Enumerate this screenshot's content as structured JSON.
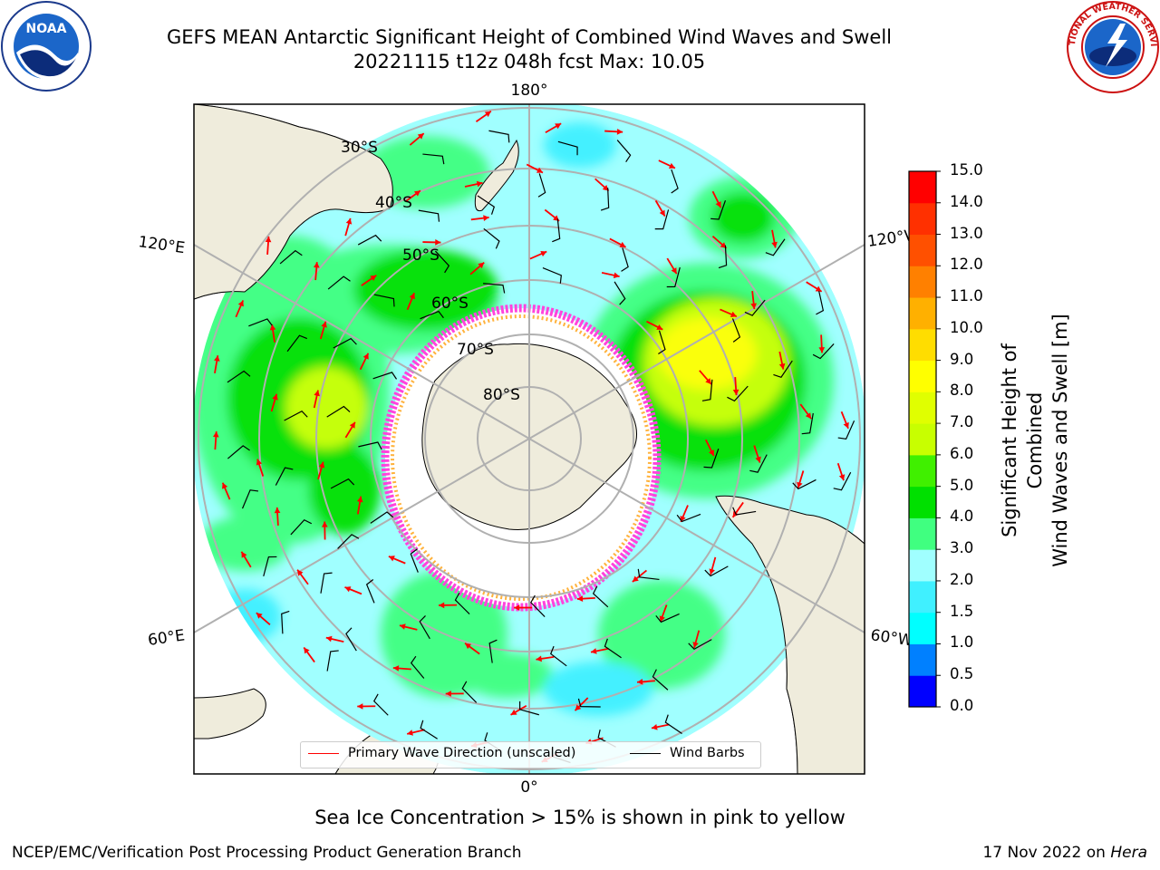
{
  "header": {
    "title_line1": "GEFS MEAN Antarctic Significant Height of Combined Wind Waves and Swell",
    "title_line2": "20221115 t12z 048h fcst   Max: 10.05"
  },
  "logos": {
    "left": {
      "icon": "noaa-logo-icon",
      "text": "NOAA"
    },
    "right": {
      "icon": "national-weather-service-logo-icon",
      "text": "NATIONAL WEATHER SERVICE"
    }
  },
  "map": {
    "projection": "south-polar-stereographic",
    "longitude_labels": [
      "180°",
      "120°E",
      "120°W",
      "60°E",
      "60°W",
      "0°"
    ],
    "latitude_labels": [
      "30°S",
      "40°S",
      "50°S",
      "60°S",
      "70°S",
      "80°S"
    ],
    "colors": {
      "land": "#efecdc",
      "ice_open": "#ffffff",
      "ice_edge_pink": "#ff44dd",
      "ice_edge_yellow": "#ffb23c",
      "wave_arrow": "#ff0000",
      "wind_barb": "#000000",
      "grid": "#b0b0b0"
    },
    "max_value": "10.05"
  },
  "legend": {
    "primary_wave_label": "Primary Wave Direction (unscaled)",
    "wind_barbs_label": "Wind Barbs"
  },
  "colorbar": {
    "title_line1": "Significant Height of Combined",
    "title_line2": "Wind Waves and Swell [m]",
    "ticks": [
      "0.0",
      "0.5",
      "1.0",
      "1.5",
      "2.0",
      "3.0",
      "4.0",
      "5.0",
      "6.0",
      "7.0",
      "8.0",
      "9.0",
      "10.0",
      "11.0",
      "12.0",
      "13.0",
      "14.0",
      "15.0"
    ],
    "colors": [
      "#0000ff",
      "#0080ff",
      "#00ffff",
      "#40f0ff",
      "#a0ffff",
      "#40ff80",
      "#00e000",
      "#40f000",
      "#c8ff00",
      "#e0ff00",
      "#ffff00",
      "#ffdd00",
      "#ffb000",
      "#ff8000",
      "#ff5000",
      "#ff3000",
      "#ff0000"
    ]
  },
  "subtitle": "Sea Ice Concentration > 15% is shown in pink to yellow",
  "footer": {
    "left": "NCEP/EMC/Verification Post Processing Product Generation Branch",
    "date": "17 Nov 2022 on ",
    "host": "Hera"
  }
}
